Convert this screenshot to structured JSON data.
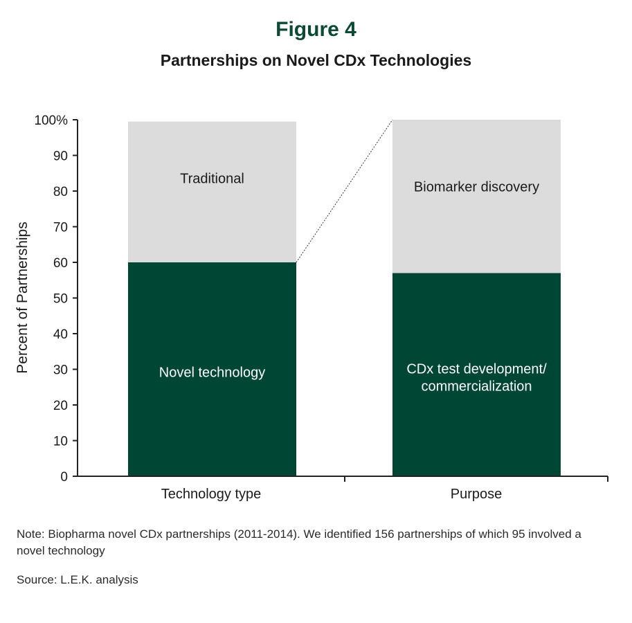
{
  "figure": {
    "title": "Figure 4",
    "subtitle": "Partnerships on Novel CDx Technologies",
    "note": "Note: Biopharma novel CDx partnerships (2011-2014). We identified 156 partnerships of which 95 involved a novel technology",
    "source": "Source: L.E.K. analysis"
  },
  "colors": {
    "dark": "#004634",
    "light": "#dcdcdc",
    "title": "#0b4a35"
  },
  "chart_data": {
    "type": "bar",
    "stacked": true,
    "ylabel": "Percent of Partnerships",
    "ylim": [
      0,
      100
    ],
    "yticks": [
      "0",
      "10",
      "20",
      "30",
      "40",
      "50",
      "60",
      "70",
      "80",
      "90",
      "100%"
    ],
    "categories": [
      "Technology type",
      "Purpose"
    ],
    "segments": [
      {
        "category": "Technology type",
        "parts": [
          {
            "label": "Novel technology",
            "value": 60,
            "color": "dark"
          },
          {
            "label": "Traditional",
            "value": 39.5,
            "color": "light"
          }
        ]
      },
      {
        "category": "Purpose",
        "parts": [
          {
            "label": "CDx test development/ commercialization",
            "value": 57,
            "color": "dark"
          },
          {
            "label": "Biomarker discovery",
            "value": 43,
            "color": "light"
          }
        ]
      }
    ],
    "grid": false,
    "legend": "none",
    "connector": "dotted line from top of first bar's dark segment to top of second bar"
  }
}
